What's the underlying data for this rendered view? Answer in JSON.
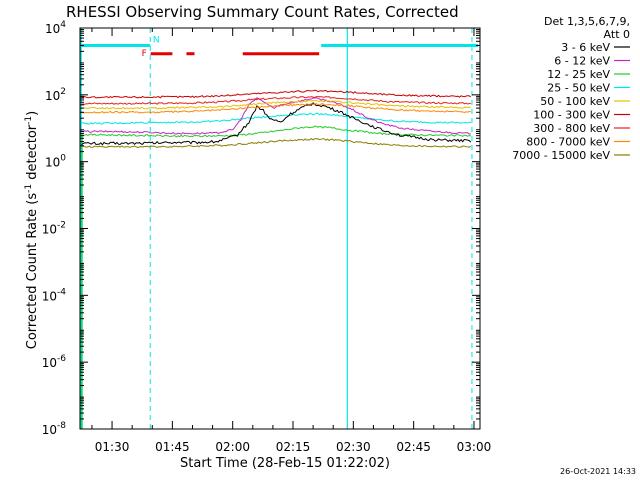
{
  "chart_data": {
    "type": "line",
    "title": "RHESSI Observing Summary Count Rates, Corrected",
    "xlabel": "Start Time (28-Feb-15 01:22:02)",
    "ylabel": "Corrected Count Rate (s-1 detector-1)",
    "ylabel_parts": {
      "pre": "Corrected Count Rate (s",
      "exp1": "-1",
      "mid": " detector",
      "exp2": "-1",
      "post": ")"
    },
    "y_scale": "log",
    "ylim": [
      1e-08,
      10000.0
    ],
    "xlim_minutes": [
      82.03,
      181.5
    ],
    "x_tick_labels": [
      "01:30",
      "01:45",
      "02:00",
      "02:15",
      "02:30",
      "02:45",
      "03:00"
    ],
    "y_tick_labels": [
      {
        "base": "10",
        "exp": "4"
      },
      {
        "base": "10",
        "exp": "2"
      },
      {
        "base": "10",
        "exp": "0"
      },
      {
        "base": "10",
        "exp": "-2"
      },
      {
        "base": "10",
        "exp": "-4"
      },
      {
        "base": "10",
        "exp": "-6"
      },
      {
        "base": "10",
        "exp": "-8"
      }
    ],
    "legend_header": [
      "Det 1,3,5,6,7,9,",
      "Att 0"
    ],
    "legend_position": "right",
    "series": [
      {
        "name": "3 - 6 keV",
        "color": "#000000",
        "points": [
          [
            82,
            3.5
          ],
          [
            90,
            3.5
          ],
          [
            100,
            3.6
          ],
          [
            106,
            3.8
          ],
          [
            110,
            3.7
          ],
          [
            116,
            4.0
          ],
          [
            121,
            6
          ],
          [
            124,
            15
          ],
          [
            126,
            45
          ],
          [
            127.5,
            35
          ],
          [
            129,
            20
          ],
          [
            132,
            15
          ],
          [
            134,
            25
          ],
          [
            137,
            40
          ],
          [
            140,
            55
          ],
          [
            143,
            45
          ],
          [
            147,
            30
          ],
          [
            150,
            20
          ],
          [
            153,
            14
          ],
          [
            157,
            9
          ],
          [
            162,
            6
          ],
          [
            170,
            4.5
          ],
          [
            178,
            4.2
          ]
        ]
      },
      {
        "name": "6 - 12 keV",
        "color": "#cc22cc",
        "points": [
          [
            82,
            8
          ],
          [
            90,
            8
          ],
          [
            100,
            7.5
          ],
          [
            106,
            7
          ],
          [
            110,
            7
          ],
          [
            116,
            7.2
          ],
          [
            120,
            9
          ],
          [
            122,
            18
          ],
          [
            124,
            50
          ],
          [
            126,
            80
          ],
          [
            128,
            60
          ],
          [
            130,
            40
          ],
          [
            132,
            50
          ],
          [
            135,
            60
          ],
          [
            138,
            70
          ],
          [
            140,
            80
          ],
          [
            143,
            70
          ],
          [
            147,
            50
          ],
          [
            150,
            35
          ],
          [
            153,
            22
          ],
          [
            157,
            14
          ],
          [
            162,
            10
          ],
          [
            170,
            8
          ],
          [
            178,
            7
          ]
        ]
      },
      {
        "name": "12 - 25 keV",
        "color": "#22cc22",
        "points": [
          [
            82,
            6.5
          ],
          [
            90,
            6.3
          ],
          [
            100,
            6.0
          ],
          [
            106,
            5.8
          ],
          [
            112,
            5.8
          ],
          [
            118,
            6.0
          ],
          [
            123,
            6.5
          ],
          [
            128,
            7.5
          ],
          [
            133,
            9
          ],
          [
            137,
            10.5
          ],
          [
            140,
            11
          ],
          [
            144,
            10.5
          ],
          [
            148,
            9
          ],
          [
            152,
            8
          ],
          [
            156,
            7
          ],
          [
            162,
            6.5
          ],
          [
            170,
            6.2
          ],
          [
            178,
            6.0
          ]
        ]
      },
      {
        "name": "25 - 50 keV",
        "color": "#00e5e5",
        "points": [
          [
            82,
            14
          ],
          [
            90,
            14
          ],
          [
            100,
            15
          ],
          [
            106,
            15
          ],
          [
            112,
            15.5
          ],
          [
            118,
            17
          ],
          [
            124,
            20
          ],
          [
            130,
            23
          ],
          [
            136,
            26
          ],
          [
            140,
            27
          ],
          [
            144,
            26
          ],
          [
            148,
            23
          ],
          [
            152,
            20
          ],
          [
            156,
            18
          ],
          [
            162,
            16
          ],
          [
            170,
            15
          ],
          [
            178,
            14.5
          ]
        ]
      },
      {
        "name": "50 - 100 keV",
        "color": "#e5c000",
        "points": [
          [
            82,
            40
          ],
          [
            90,
            40
          ],
          [
            100,
            40
          ],
          [
            110,
            42
          ],
          [
            118,
            45
          ],
          [
            125,
            52
          ],
          [
            132,
            60
          ],
          [
            138,
            64
          ],
          [
            141,
            65
          ],
          [
            145,
            63
          ],
          [
            150,
            58
          ],
          [
            155,
            52
          ],
          [
            160,
            47
          ],
          [
            168,
            44
          ],
          [
            178,
            42
          ]
        ]
      },
      {
        "name": "100 - 300 keV",
        "color": "#cc0000",
        "points": [
          [
            82,
            85
          ],
          [
            90,
            85
          ],
          [
            100,
            86
          ],
          [
            110,
            88
          ],
          [
            118,
            95
          ],
          [
            125,
            108
          ],
          [
            132,
            120
          ],
          [
            138,
            128
          ],
          [
            141,
            130
          ],
          [
            145,
            126
          ],
          [
            150,
            118
          ],
          [
            155,
            108
          ],
          [
            160,
            100
          ],
          [
            168,
            93
          ],
          [
            178,
            90
          ]
        ]
      },
      {
        "name": "300 - 800 keV",
        "color": "#e52222",
        "points": [
          [
            82,
            55
          ],
          [
            90,
            55
          ],
          [
            100,
            55
          ],
          [
            110,
            57
          ],
          [
            118,
            62
          ],
          [
            125,
            72
          ],
          [
            132,
            80
          ],
          [
            138,
            85
          ],
          [
            141,
            86
          ],
          [
            145,
            83
          ],
          [
            150,
            76
          ],
          [
            155,
            68
          ],
          [
            160,
            62
          ],
          [
            168,
            58
          ],
          [
            178,
            56
          ]
        ]
      },
      {
        "name": "800 - 7000 keV",
        "color": "#ff8800",
        "points": [
          [
            82,
            30
          ],
          [
            90,
            30
          ],
          [
            100,
            30
          ],
          [
            110,
            32
          ],
          [
            118,
            36
          ],
          [
            125,
            42
          ],
          [
            132,
            48
          ],
          [
            138,
            52
          ],
          [
            141,
            53
          ],
          [
            145,
            51
          ],
          [
            150,
            46
          ],
          [
            155,
            40
          ],
          [
            160,
            36
          ],
          [
            168,
            33
          ],
          [
            178,
            31
          ]
        ]
      },
      {
        "name": "7000 - 15000 keV",
        "color": "#8b7d00",
        "points": [
          [
            82,
            2.8
          ],
          [
            90,
            2.8
          ],
          [
            100,
            2.8
          ],
          [
            110,
            2.9
          ],
          [
            118,
            3.1
          ],
          [
            125,
            3.6
          ],
          [
            132,
            4.2
          ],
          [
            138,
            4.6
          ],
          [
            141,
            4.7
          ],
          [
            145,
            4.5
          ],
          [
            150,
            4.0
          ],
          [
            155,
            3.5
          ],
          [
            160,
            3.1
          ],
          [
            168,
            2.9
          ],
          [
            178,
            2.8
          ]
        ]
      }
    ],
    "flag_bars": [
      {
        "label": "",
        "color": "#00e5e5",
        "level": 3000,
        "ranges": [
          [
            82.03,
            99.5
          ],
          [
            142.0,
            181.0
          ]
        ]
      },
      {
        "label": "F",
        "color": "#e50000",
        "level": 1700,
        "ranges": [
          [
            99.6,
            105.0
          ],
          [
            108.5,
            110.5
          ],
          [
            122.5,
            141.5
          ]
        ]
      }
    ],
    "flag_markers": [
      {
        "label": "N",
        "color": "#00e5e5",
        "x": 101.0,
        "y": 4500
      },
      {
        "label": "F",
        "color": "#e50000",
        "x": 98.0,
        "y": 1800
      }
    ],
    "dashed_lines": [
      {
        "x": 99.5,
        "color": "#00e5e5"
      },
      {
        "x": 179.5,
        "color": "#00e5e5"
      }
    ],
    "solid_lines": [
      {
        "x": 82.3,
        "color": "#00e5e5"
      },
      {
        "x": 148.5,
        "color": "#00e5e5"
      }
    ]
  },
  "footer": {
    "timestamp": "26-Oct-2021 14:33"
  }
}
